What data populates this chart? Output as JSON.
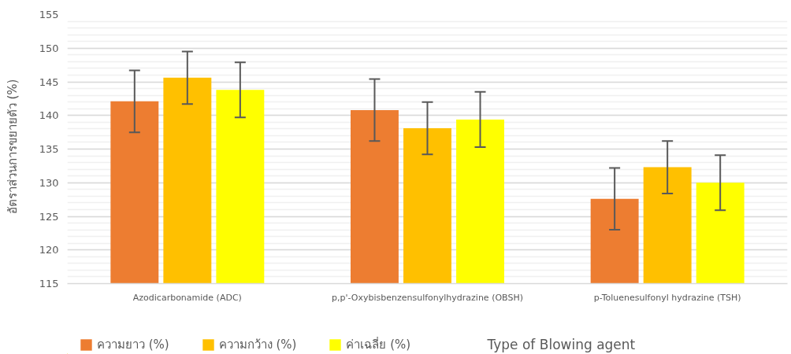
{
  "chart_data": {
    "type": "bar",
    "ylabel": "อัตราส่วนการขยายตัว (%)",
    "xlabel": "Type of Blowing agent",
    "categories": [
      "Azodicarbonamide (ADC)",
      "p,p'-Oxybisbenzensulfonylhydrazine (OBSH)",
      "p-Toluenesulfonyl hydrazine (TSH)"
    ],
    "series": [
      {
        "name": "ความยาว (%)",
        "color": "#ed7d31",
        "values": [
          142.1,
          140.8,
          127.6
        ],
        "errors": [
          4.6,
          4.6,
          4.6
        ]
      },
      {
        "name": "ความกว้าง (%)",
        "color": "#ffc000",
        "values": [
          145.6,
          138.1,
          132.3
        ],
        "errors": [
          3.9,
          3.9,
          3.9
        ]
      },
      {
        "name": "ค่าเฉลี่ย (%)",
        "color": "#ffff00",
        "values": [
          143.8,
          139.4,
          130.0
        ],
        "errors": [
          4.1,
          4.1,
          4.1
        ]
      }
    ],
    "ylim": [
      115,
      155
    ],
    "yticks": [
      115,
      120,
      125,
      130,
      135,
      140,
      145,
      150,
      155
    ],
    "grid": "y",
    "legend": "bottom left"
  }
}
